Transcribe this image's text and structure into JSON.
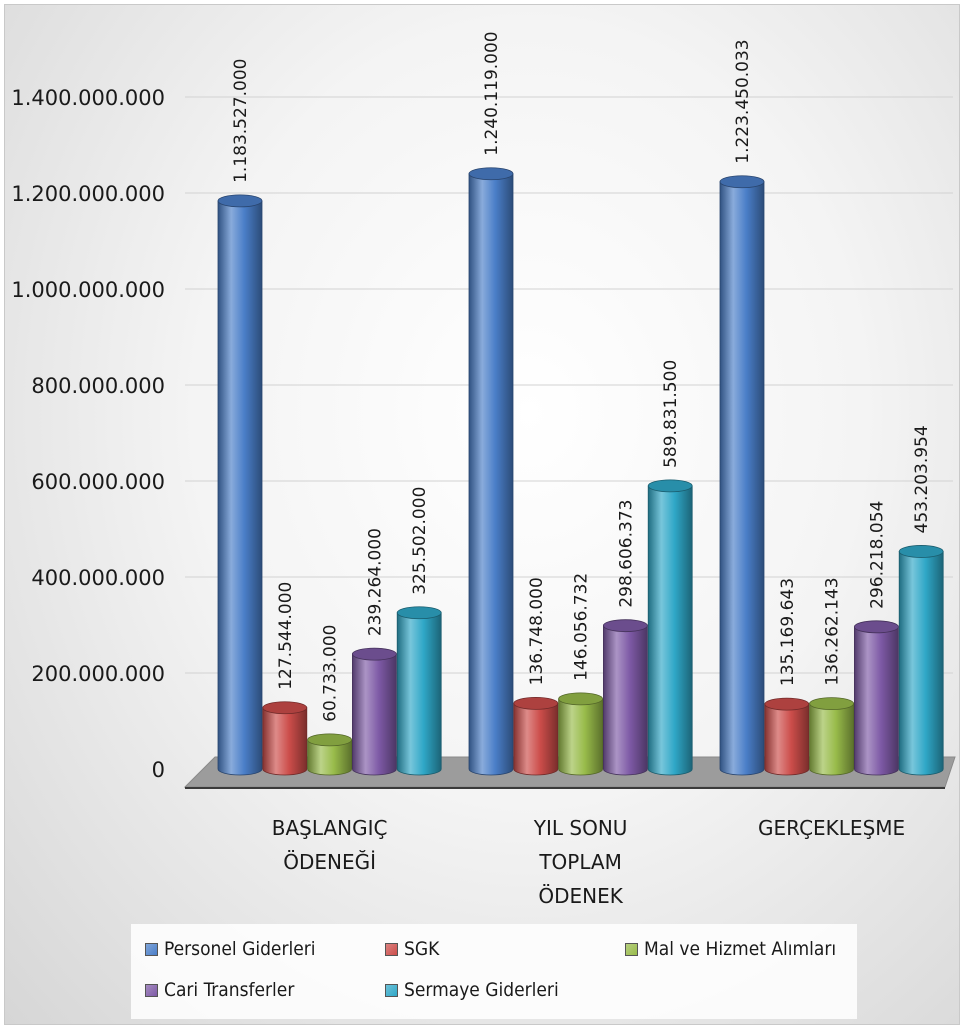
{
  "chart_data": {
    "type": "bar",
    "style": "3d-cylinder",
    "categories": [
      "BAŞLANGIÇ ÖDENEĞİ",
      "YIL SONU TOPLAM ÖDENEK",
      "GERÇEKLEŞME"
    ],
    "category_lines": [
      [
        "BAŞLANGIÇ",
        "ÖDENEĞİ"
      ],
      [
        "YIL SONU",
        "TOPLAM",
        "ÖDENEK"
      ],
      [
        "GERÇEKLEŞME"
      ]
    ],
    "series": [
      {
        "name": "Personel Giderleri",
        "color": "#4a7ec8",
        "values": [
          1183527000,
          1240119000,
          1223450033
        ],
        "labels": [
          "1.183.527.000",
          "1.240.119.000",
          "1.223.450.033"
        ]
      },
      {
        "name": "SGK",
        "color": "#cc4d4a",
        "values": [
          127544000,
          136748000,
          135169643
        ],
        "labels": [
          "127.544.000",
          "136.748.000",
          "135.169.643"
        ]
      },
      {
        "name": "Mal ve Hizmet Alımları",
        "color": "#98bb4a",
        "values": [
          60733000,
          146056732,
          136262143
        ],
        "labels": [
          "60.733.000",
          "146.056.732",
          "136.262.143"
        ]
      },
      {
        "name": "Cari Transferler",
        "color": "#7e5aa6",
        "values": [
          239264000,
          298606373,
          296218054
        ],
        "labels": [
          "239.264.000",
          "298.606.373",
          "296.218.054"
        ]
      },
      {
        "name": "Sermaye Giderleri",
        "color": "#2fa7c7",
        "values": [
          325502000,
          589831500,
          453203954
        ],
        "labels": [
          "325.502.000",
          "589.831.500",
          "453.203.954"
        ]
      }
    ],
    "ylim": [
      0,
      1400000000
    ],
    "yticks": [
      0,
      200000000,
      400000000,
      600000000,
      800000000,
      1000000000,
      1200000000,
      1400000000
    ],
    "ytick_labels": [
      "0",
      "200.000.000",
      "400.000.000",
      "600.000.000",
      "800.000.000",
      "1.000.000.000",
      "1.200.000.000",
      "1.400.000.000"
    ],
    "grid": true,
    "legend_position": "bottom",
    "xlabel": "",
    "ylabel": "",
    "title": ""
  }
}
